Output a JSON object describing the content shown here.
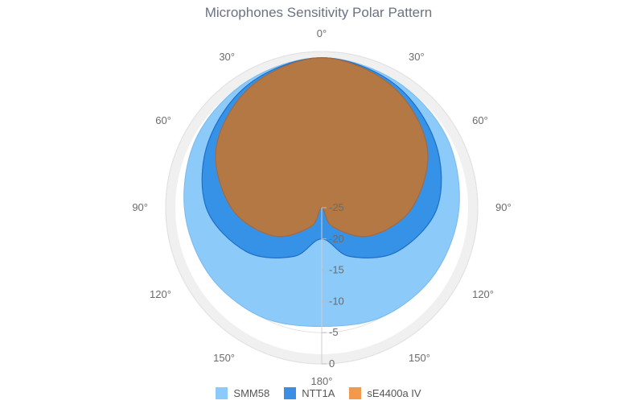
{
  "chart_data": {
    "type": "polar-area",
    "title": "Microphones Sensitivity Polar Pattern",
    "angle_labels": [
      "0°",
      "30°",
      "60°",
      "90°",
      "120°",
      "150°",
      "180°",
      "150°",
      "120°",
      "90°",
      "60°",
      "30°"
    ],
    "radial_ticks": [
      "0",
      "-5",
      "-10",
      "-15",
      "-20",
      "-25"
    ],
    "radial_range": [
      0,
      -25
    ],
    "series": [
      {
        "name": "SMM58",
        "color": "#8ccaf9",
        "angles_deg": [
          0,
          30,
          60,
          90,
          120,
          150,
          180
        ],
        "values": [
          -1,
          -1.5,
          -2,
          -3,
          -4,
          -5,
          -6
        ]
      },
      {
        "name": "NTT1A",
        "color": "#3a8ee6",
        "angles_deg": [
          0,
          30,
          60,
          90,
          120,
          150,
          180
        ],
        "values": [
          -1,
          -2,
          -4,
          -6.5,
          -11,
          -16,
          -20
        ]
      },
      {
        "name": "sE4400a IV",
        "color": "#f2994a",
        "angles_deg": [
          0,
          30,
          60,
          90,
          120,
          150,
          180
        ],
        "values": [
          -1,
          -2.5,
          -5.5,
          -10.5,
          -16,
          -21.5,
          -25
        ]
      }
    ],
    "legend": {
      "position": "bottom-center"
    }
  }
}
